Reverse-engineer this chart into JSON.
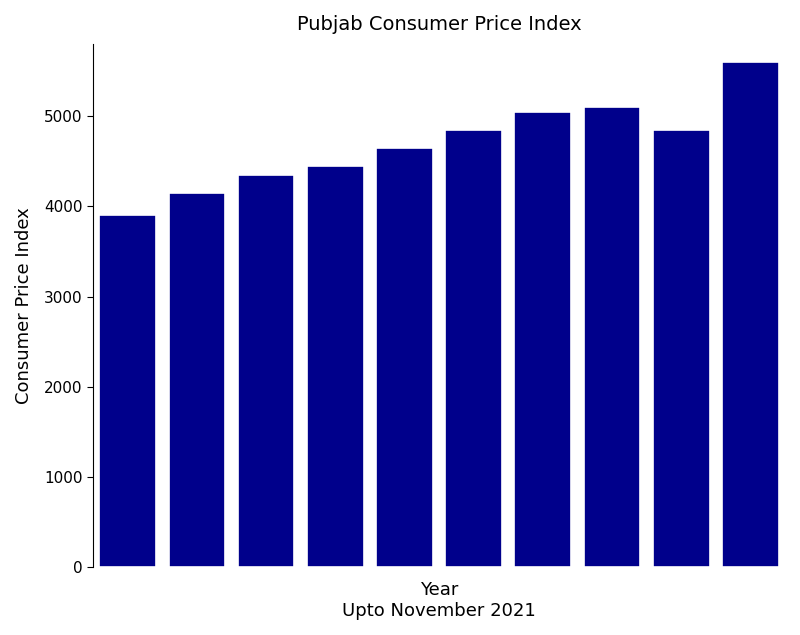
{
  "title": "Pubjab Consumer Price Index",
  "xlabel": "Year",
  "xlabel2": "Upto November 2021",
  "ylabel": "Consumer Price Index",
  "values": [
    3900,
    4150,
    4350,
    4450,
    4650,
    4850,
    5050,
    5100,
    4850,
    5600
  ],
  "bar_color": "#00008B",
  "ylim": [
    0,
    5800
  ],
  "yticks": [
    0,
    1000,
    2000,
    3000,
    4000,
    5000
  ],
  "background_color": "#ffffff",
  "title_fontsize": 14,
  "label_fontsize": 13,
  "tick_fontsize": 11,
  "bar_width": 0.82
}
